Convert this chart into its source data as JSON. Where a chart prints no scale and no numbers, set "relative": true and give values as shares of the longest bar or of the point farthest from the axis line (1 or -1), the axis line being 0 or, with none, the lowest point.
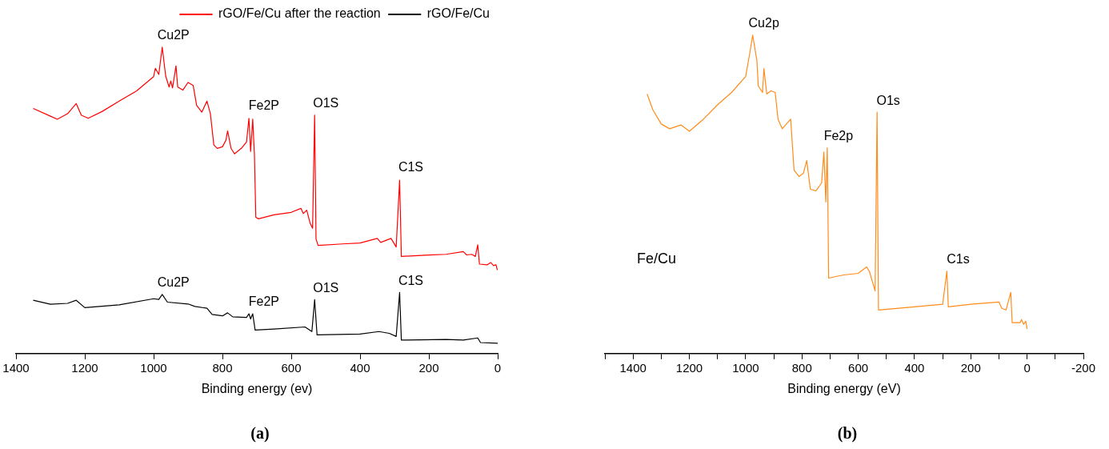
{
  "chart_data": [
    {
      "type": "line",
      "relative": true,
      "xlabel": "Binding energy (ev)",
      "xlim": [
        1400,
        0
      ],
      "xticks": [
        1400,
        1200,
        1000,
        800,
        600,
        400,
        200,
        0
      ],
      "marker": "none",
      "legend": "top right",
      "annotations": [
        {
          "text": "Cu2P",
          "x": 975,
          "y": 1.0
        },
        {
          "text": "Fe2P",
          "x": 712,
          "y": 0.77
        },
        {
          "text": "O1S",
          "x": 532,
          "y": 0.78
        },
        {
          "text": "C1S",
          "x": 285,
          "y": 0.57
        },
        {
          "text": "Cu2P",
          "x": 975,
          "y": 0.193
        },
        {
          "text": "Fe2P",
          "x": 712,
          "y": 0.13
        },
        {
          "text": "O1S",
          "x": 532,
          "y": 0.176
        },
        {
          "text": "C1S",
          "x": 285,
          "y": 0.2
        },
        "(a)"
      ],
      "series": [
        {
          "name": "rGO/Fe/Cu after the reaction",
          "color": "#ff0000",
          "x": [
            1350,
            1300,
            1280,
            1250,
            1225,
            1210,
            1190,
            1150,
            1100,
            1050,
            1000,
            995,
            985,
            975,
            965,
            955,
            950,
            945,
            935,
            930,
            915,
            900,
            885,
            875,
            860,
            845,
            835,
            825,
            815,
            800,
            790,
            785,
            775,
            765,
            745,
            730,
            723,
            718,
            712,
            707,
            703,
            695,
            650,
            600,
            572,
            565,
            555,
            545,
            538,
            532,
            528,
            522,
            450,
            400,
            350,
            340,
            310,
            295,
            285,
            280,
            200,
            150,
            100,
            90,
            75,
            65,
            58,
            53,
            30,
            20,
            12,
            5,
            1
          ],
          "values": [
            0.8,
            0.775,
            0.765,
            0.783,
            0.816,
            0.778,
            0.768,
            0.79,
            0.824,
            0.857,
            0.904,
            0.931,
            0.911,
            1.0,
            0.906,
            0.87,
            0.89,
            0.867,
            0.939,
            0.87,
            0.86,
            0.885,
            0.875,
            0.81,
            0.788,
            0.824,
            0.783,
            0.681,
            0.67,
            0.675,
            0.696,
            0.727,
            0.67,
            0.652,
            0.67,
            0.691,
            0.768,
            0.66,
            0.765,
            0.65,
            0.445,
            0.44,
            0.453,
            0.461,
            0.474,
            0.457,
            0.468,
            0.425,
            0.409,
            0.778,
            0.374,
            0.353,
            0.358,
            0.361,
            0.376,
            0.363,
            0.376,
            0.348,
            0.566,
            0.317,
            0.322,
            0.324,
            0.333,
            0.322,
            0.324,
            0.317,
            0.355,
            0.292,
            0.29,
            0.297,
            0.287,
            0.29,
            0.273
          ]
        },
        {
          "name": "rGO/Fe/Cu",
          "color": "#000000",
          "x": [
            1350,
            1300,
            1250,
            1225,
            1200,
            1100,
            1000,
            985,
            975,
            960,
            900,
            880,
            845,
            830,
            800,
            785,
            770,
            730,
            723,
            718,
            712,
            705,
            650,
            560,
            540,
            532,
            525,
            400,
            345,
            315,
            295,
            285,
            280,
            150,
            100,
            58,
            50,
            0
          ],
          "values": [
            0.174,
            0.161,
            0.164,
            0.174,
            0.15,
            0.159,
            0.179,
            0.177,
            0.193,
            0.168,
            0.162,
            0.154,
            0.148,
            0.128,
            0.123,
            0.133,
            0.12,
            0.118,
            0.13,
            0.113,
            0.13,
            0.077,
            0.08,
            0.087,
            0.072,
            0.176,
            0.061,
            0.064,
            0.072,
            0.066,
            0.056,
            0.2,
            0.044,
            0.046,
            0.044,
            0.051,
            0.036,
            0.034
          ]
        }
      ]
    },
    {
      "type": "line",
      "relative": true,
      "xlabel": "Binding energy (eV)",
      "xlim": [
        1500,
        -200
      ],
      "xticks": [
        {
          "value": 1500,
          "label": null
        },
        1400,
        {
          "value": 1300,
          "label": null
        },
        1200,
        {
          "value": 1100,
          "label": null
        },
        1000,
        {
          "value": 900,
          "label": null
        },
        800,
        {
          "value": 700,
          "label": null
        },
        600,
        {
          "value": 500,
          "label": null
        },
        400,
        {
          "value": 300,
          "label": null
        },
        200,
        {
          "value": 100,
          "label": null
        },
        0,
        {
          "value": -100,
          "label": null
        },
        -200
      ],
      "marker": "none",
      "annotations": [
        {
          "text": "Cu2p",
          "x": 975,
          "y": 1.0
        },
        {
          "text": "Fe2p",
          "x": 710,
          "y": 0.646
        },
        {
          "text": "O1s",
          "x": 533,
          "y": 0.758
        },
        {
          "text": "C1s",
          "x": 285,
          "y": 0.259
        },
        "Fe/Cu",
        "(b)"
      ],
      "series": [
        {
          "color": "#ff8c1a",
          "x": [
            1350,
            1330,
            1300,
            1270,
            1230,
            1200,
            1150,
            1100,
            1050,
            1000,
            985,
            975,
            960,
            955,
            940,
            935,
            925,
            910,
            895,
            885,
            870,
            860,
            840,
            828,
            810,
            795,
            783,
            770,
            750,
            730,
            722,
            715,
            710,
            705,
            680,
            650,
            600,
            570,
            560,
            540,
            533,
            528,
            400,
            300,
            285,
            280,
            200,
            100,
            90,
            75,
            58,
            53,
            25,
            20,
            12,
            5,
            0
          ],
          "values": [
            0.815,
            0.766,
            0.721,
            0.706,
            0.718,
            0.698,
            0.736,
            0.781,
            0.82,
            0.87,
            0.945,
            1.0,
            0.92,
            0.84,
            0.82,
            0.895,
            0.815,
            0.825,
            0.82,
            0.736,
            0.706,
            0.716,
            0.736,
            0.576,
            0.556,
            0.566,
            0.606,
            0.516,
            0.511,
            0.536,
            0.633,
            0.476,
            0.646,
            0.237,
            0.242,
            0.247,
            0.252,
            0.272,
            0.257,
            0.197,
            0.758,
            0.137,
            0.147,
            0.155,
            0.259,
            0.147,
            0.155,
            0.162,
            0.142,
            0.137,
            0.192,
            0.097,
            0.097,
            0.107,
            0.092,
            0.102,
            0.077
          ]
        }
      ]
    }
  ]
}
